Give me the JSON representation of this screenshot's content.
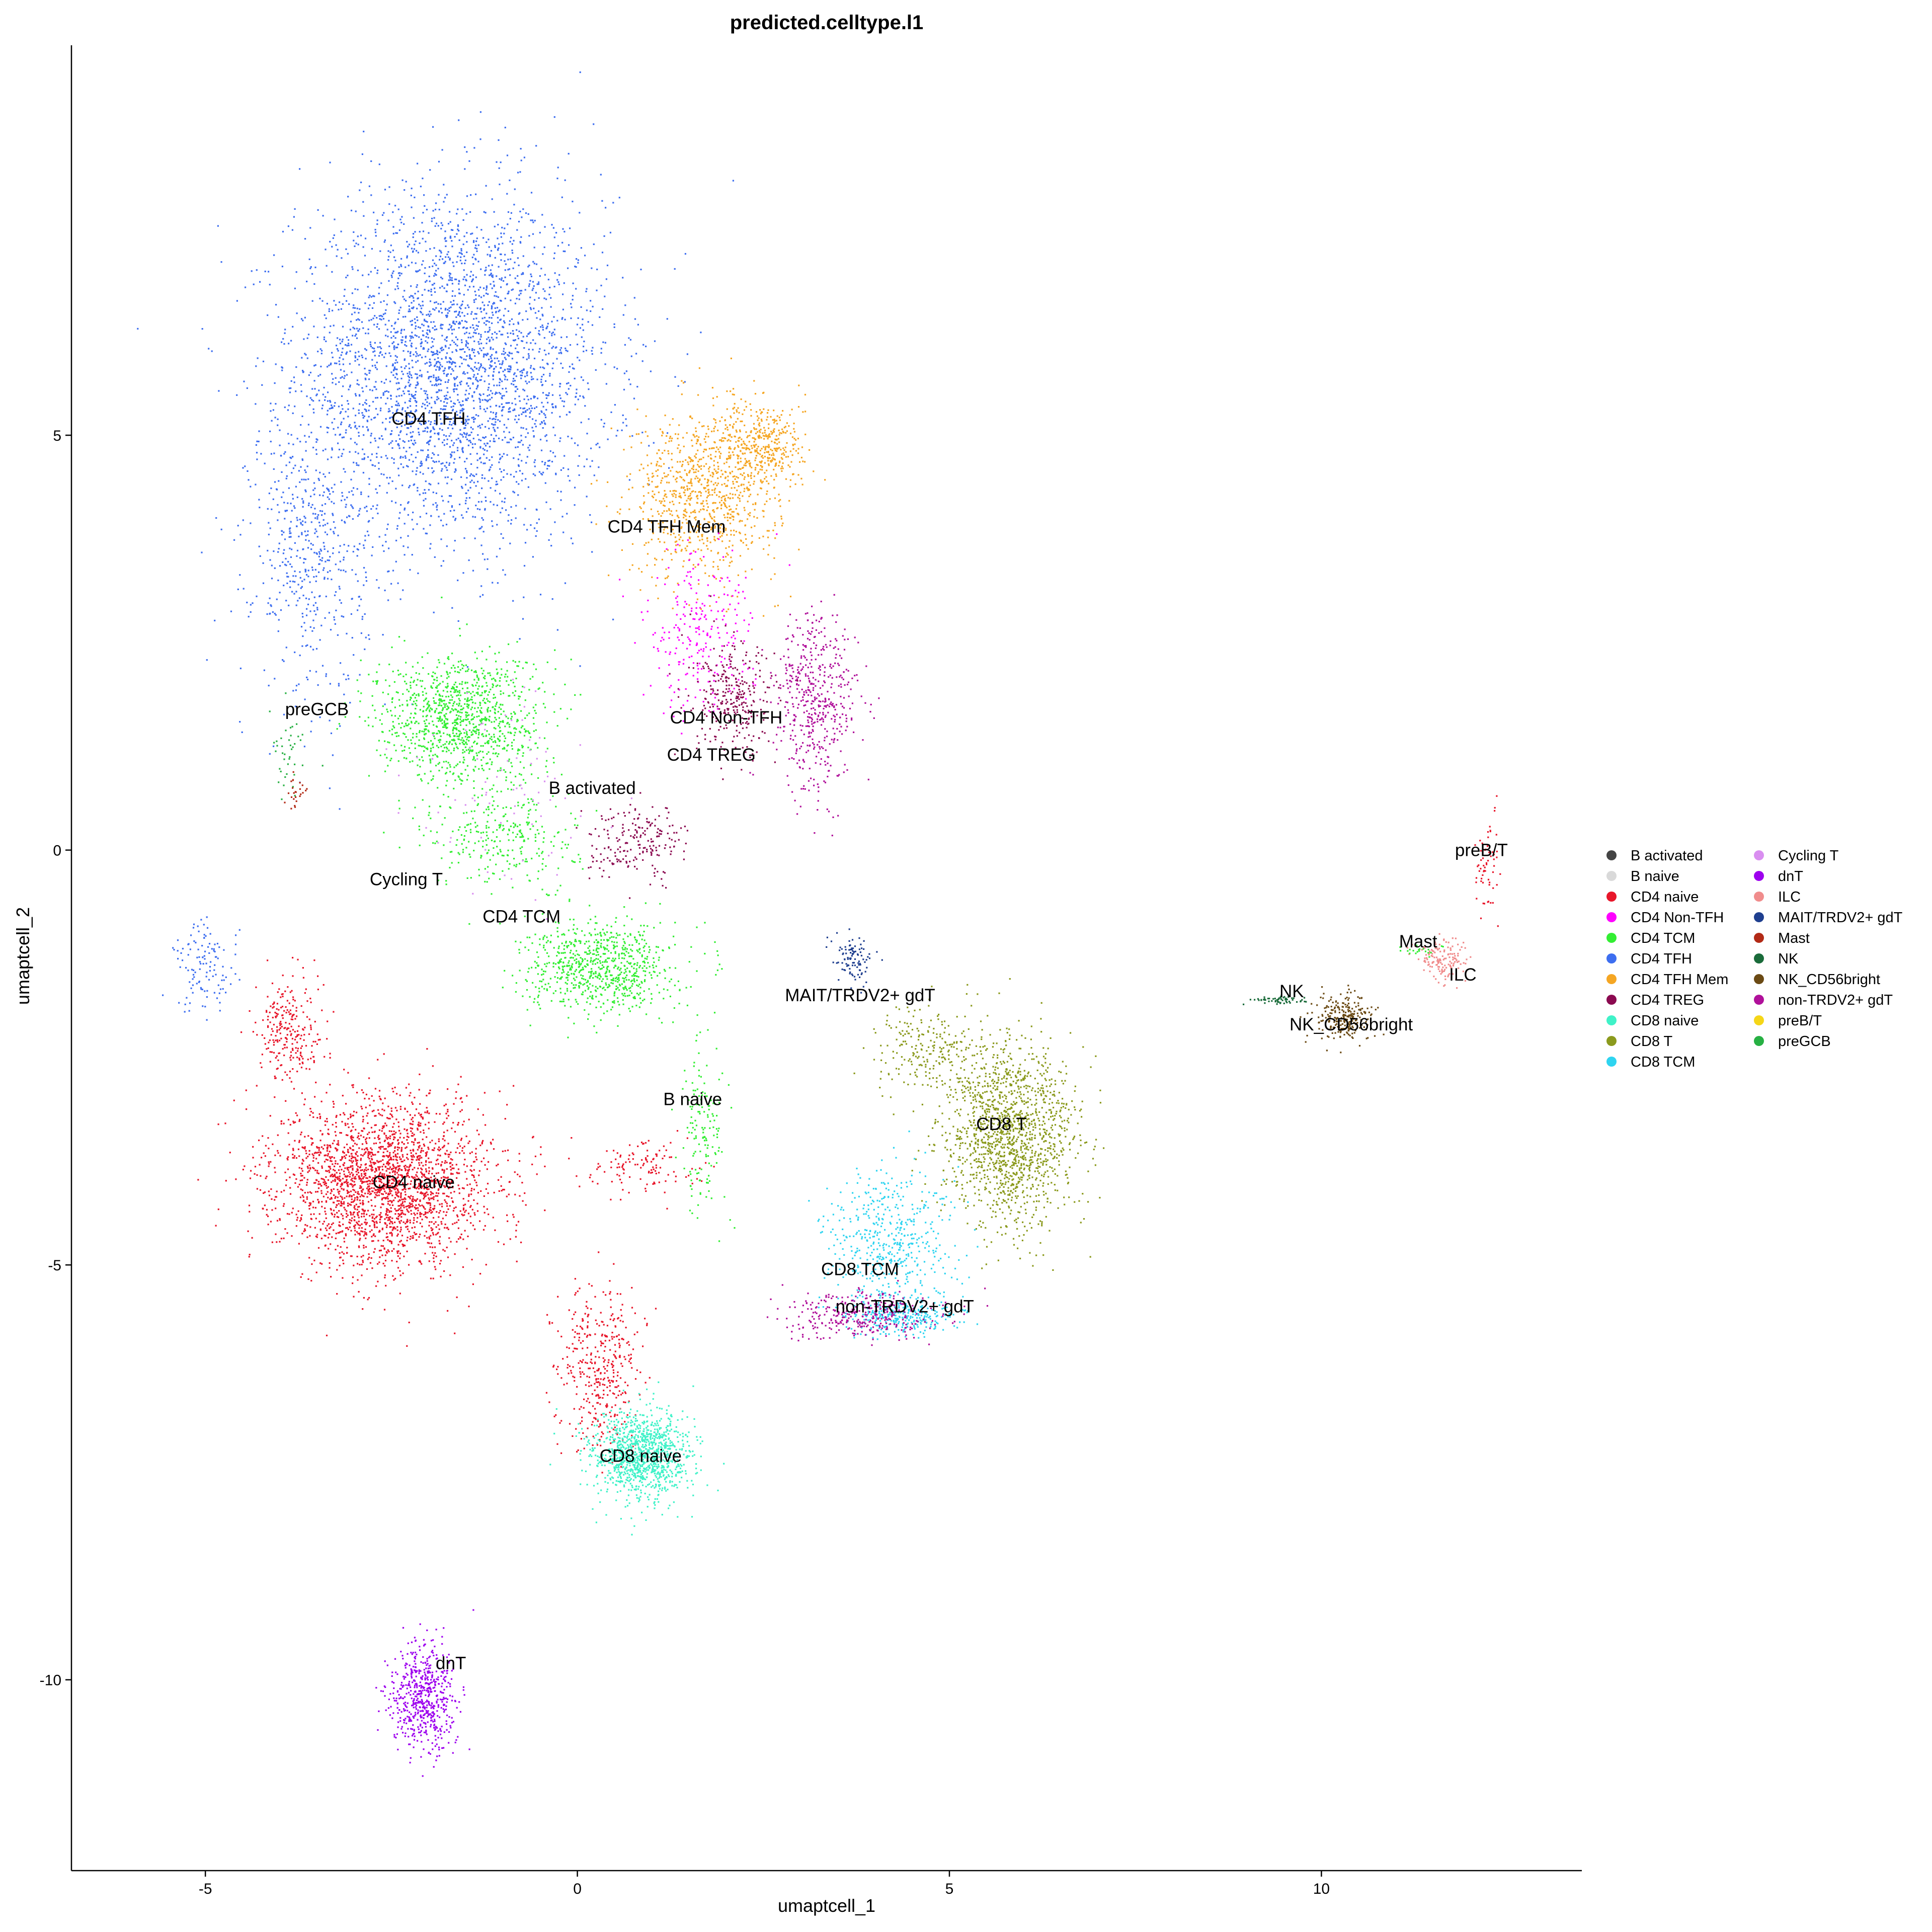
{
  "chart_data": {
    "type": "scatter",
    "title": "predicted.celltype.l1",
    "xlabel": "umaptcell_1",
    "ylabel": "umaptcell_2",
    "xlim": [
      -6.8,
      13.5
    ],
    "ylim": [
      -12.3,
      9.7
    ],
    "x_ticks": [
      -5,
      0,
      5,
      10
    ],
    "y_ticks": [
      -10,
      -5,
      0,
      5
    ],
    "grid": false,
    "legend_position": "right",
    "legend": [
      {
        "name": "B activated",
        "color": "#444444"
      },
      {
        "name": "B naive",
        "color": "#d9d9d9"
      },
      {
        "name": "CD4 naive",
        "color": "#e8162a"
      },
      {
        "name": "CD4 Non-TFH",
        "color": "#ff00ff"
      },
      {
        "name": "CD4 TCM",
        "color": "#33ee33"
      },
      {
        "name": "CD4 TFH",
        "color": "#3d6ef0"
      },
      {
        "name": "CD4 TFH Mem",
        "color": "#f5a623"
      },
      {
        "name": "CD4 TREG",
        "color": "#8b0a50"
      },
      {
        "name": "CD8 naive",
        "color": "#3ff2c8"
      },
      {
        "name": "CD8 T",
        "color": "#8b9a1d"
      },
      {
        "name": "CD8 TCM",
        "color": "#2ed4f0"
      },
      {
        "name": "Cycling T",
        "color": "#d98ef0"
      },
      {
        "name": "dnT",
        "color": "#9d00ee"
      },
      {
        "name": "ILC",
        "color": "#f08c8c"
      },
      {
        "name": "MAIT/TRDV2+ gdT",
        "color": "#1f3f8f"
      },
      {
        "name": "Mast",
        "color": "#b22a16"
      },
      {
        "name": "NK",
        "color": "#1a6b3a"
      },
      {
        "name": "NK_CD56bright",
        "color": "#6b4a14"
      },
      {
        "name": "non-TRDV2+ gdT",
        "color": "#b0109a"
      },
      {
        "name": "preB/T",
        "color": "#f5d617"
      },
      {
        "name": "preGCB",
        "color": "#27b043"
      }
    ],
    "cluster_labels": [
      {
        "text": "CD4 TFH",
        "x": -2.0,
        "y": 5.2
      },
      {
        "text": "CD4 TFH Mem",
        "x": 1.2,
        "y": 3.9
      },
      {
        "text": "preGCB",
        "x": -3.5,
        "y": 1.7
      },
      {
        "text": "CD4 Non-TFH",
        "x": 2.0,
        "y": 1.6
      },
      {
        "text": "CD4 TREG",
        "x": 1.8,
        "y": 1.15
      },
      {
        "text": "B activated",
        "x": 0.2,
        "y": 0.75
      },
      {
        "text": "Cycling T",
        "x": -2.3,
        "y": -0.35
      },
      {
        "text": "CD4 TCM",
        "x": -0.75,
        "y": -0.8
      },
      {
        "text": "MAIT/TRDV2+ gdT",
        "x": 3.8,
        "y": -1.75
      },
      {
        "text": "B naive",
        "x": 1.55,
        "y": -3.0
      },
      {
        "text": "CD8 T",
        "x": 5.7,
        "y": -3.3
      },
      {
        "text": "CD4 naive",
        "x": -2.2,
        "y": -4.0
      },
      {
        "text": "CD8 TCM",
        "x": 3.8,
        "y": -5.05
      },
      {
        "text": "non-TRDV2+ gdT",
        "x": 4.4,
        "y": -5.5
      },
      {
        "text": "CD8 naive",
        "x": 0.85,
        "y": -7.3
      },
      {
        "text": "dnT",
        "x": -1.7,
        "y": -9.8
      },
      {
        "text": "preB/T",
        "x": 12.15,
        "y": 0.0
      },
      {
        "text": "Mast",
        "x": 11.3,
        "y": -1.1
      },
      {
        "text": "ILC",
        "x": 11.9,
        "y": -1.5
      },
      {
        "text": "NK",
        "x": 9.6,
        "y": -1.7
      },
      {
        "text": "NK_CD56bright",
        "x": 10.4,
        "y": -2.1
      }
    ],
    "clusters": [
      {
        "type": "CD4 TFH",
        "cx": -1.7,
        "cy": 5.8,
        "sx": 1.9,
        "sy": 1.9,
        "n": 3200
      },
      {
        "type": "CD4 TFH",
        "cx": -3.6,
        "cy": 3.6,
        "sx": 0.7,
        "sy": 1.6,
        "n": 500
      },
      {
        "type": "CD4 TFH",
        "cx": -5.0,
        "cy": -1.4,
        "sx": 0.4,
        "sy": 0.5,
        "n": 120
      },
      {
        "type": "CD4 TFH Mem",
        "cx": 1.7,
        "cy": 4.3,
        "sx": 0.9,
        "sy": 0.9,
        "n": 900
      },
      {
        "type": "CD4 TFH Mem",
        "cx": 2.5,
        "cy": 4.9,
        "sx": 0.5,
        "sy": 0.5,
        "n": 350
      },
      {
        "type": "CD4 TCM",
        "cx": -1.6,
        "cy": 1.6,
        "sx": 1.0,
        "sy": 0.7,
        "n": 1100
      },
      {
        "type": "CD4 TCM",
        "cx": 0.3,
        "cy": -1.4,
        "sx": 0.9,
        "sy": 0.5,
        "n": 800
      },
      {
        "type": "CD4 TCM",
        "cx": -1.0,
        "cy": 0.2,
        "sx": 0.9,
        "sy": 0.6,
        "n": 300
      },
      {
        "type": "CD4 TCM",
        "cx": 1.7,
        "cy": -3.3,
        "sx": 0.3,
        "sy": 0.9,
        "n": 150
      },
      {
        "type": "non-TRDV2+ gdT",
        "cx": 3.2,
        "cy": 1.8,
        "sx": 0.5,
        "sy": 1.0,
        "n": 500
      },
      {
        "type": "CD4 Non-TFH",
        "cx": 1.6,
        "cy": 2.6,
        "sx": 0.7,
        "sy": 0.9,
        "n": 250
      },
      {
        "type": "CD4 TREG",
        "cx": 2.1,
        "cy": 1.8,
        "sx": 0.5,
        "sy": 0.6,
        "n": 300
      },
      {
        "type": "CD4 TREG",
        "cx": 0.8,
        "cy": 0.1,
        "sx": 0.6,
        "sy": 0.4,
        "n": 200
      },
      {
        "type": "CD4 naive",
        "cx": -2.6,
        "cy": -4.0,
        "sx": 1.3,
        "sy": 0.9,
        "n": 2400
      },
      {
        "type": "CD4 naive",
        "cx": -3.9,
        "cy": -2.2,
        "sx": 0.4,
        "sy": 0.6,
        "n": 250
      },
      {
        "type": "CD4 naive",
        "cx": 0.3,
        "cy": -6.2,
        "sx": 0.5,
        "sy": 0.9,
        "n": 400
      },
      {
        "type": "CD4 naive",
        "cx": 0.9,
        "cy": -3.8,
        "sx": 0.7,
        "sy": 0.3,
        "n": 120
      },
      {
        "type": "CD8 naive",
        "cx": 0.85,
        "cy": -7.3,
        "sx": 0.6,
        "sy": 0.5,
        "n": 1100
      },
      {
        "type": "CD8 T",
        "cx": 5.8,
        "cy": -3.4,
        "sx": 0.8,
        "sy": 1.0,
        "n": 1500
      },
      {
        "type": "CD8 T",
        "cx": 4.6,
        "cy": -2.4,
        "sx": 0.6,
        "sy": 0.5,
        "n": 200
      },
      {
        "type": "CD8 TCM",
        "cx": 4.2,
        "cy": -4.7,
        "sx": 0.8,
        "sy": 0.8,
        "n": 500
      },
      {
        "type": "CD8 TCM",
        "cx": 4.4,
        "cy": -5.6,
        "sx": 0.7,
        "sy": 0.2,
        "n": 300
      },
      {
        "type": "MAIT/TRDV2+ gdT",
        "cx": 3.7,
        "cy": -1.3,
        "sx": 0.25,
        "sy": 0.25,
        "n": 100
      },
      {
        "type": "non-TRDV2+ gdT",
        "cx": 3.8,
        "cy": -5.6,
        "sx": 0.9,
        "sy": 0.25,
        "n": 350
      },
      {
        "type": "dnT",
        "cx": -2.1,
        "cy": -10.2,
        "sx": 0.4,
        "sy": 0.6,
        "n": 600
      },
      {
        "type": "preGCB",
        "cx": -3.9,
        "cy": 1.2,
        "sx": 0.2,
        "sy": 0.5,
        "n": 40
      },
      {
        "type": "Mast",
        "cx": -3.8,
        "cy": 0.7,
        "sx": 0.12,
        "sy": 0.2,
        "n": 25
      },
      {
        "type": "NK",
        "cx": 9.4,
        "cy": -1.8,
        "sx": 0.35,
        "sy": 0.05,
        "n": 60
      },
      {
        "type": "NK_CD56bright",
        "cx": 10.3,
        "cy": -2.0,
        "sx": 0.35,
        "sy": 0.25,
        "n": 250
      },
      {
        "type": "ILC",
        "cx": 11.6,
        "cy": -1.3,
        "sx": 0.3,
        "sy": 0.25,
        "n": 150
      },
      {
        "type": "CD4 TCM",
        "cx": 11.3,
        "cy": -1.2,
        "sx": 0.25,
        "sy": 0.05,
        "n": 20
      },
      {
        "type": "CD4 naive",
        "cx": 12.2,
        "cy": -0.2,
        "sx": 0.15,
        "sy": 0.55,
        "n": 60
      },
      {
        "type": "Cycling T",
        "cx": -1.0,
        "cy": 0.6,
        "sx": 1.2,
        "sy": 1.2,
        "n": 80
      }
    ]
  }
}
